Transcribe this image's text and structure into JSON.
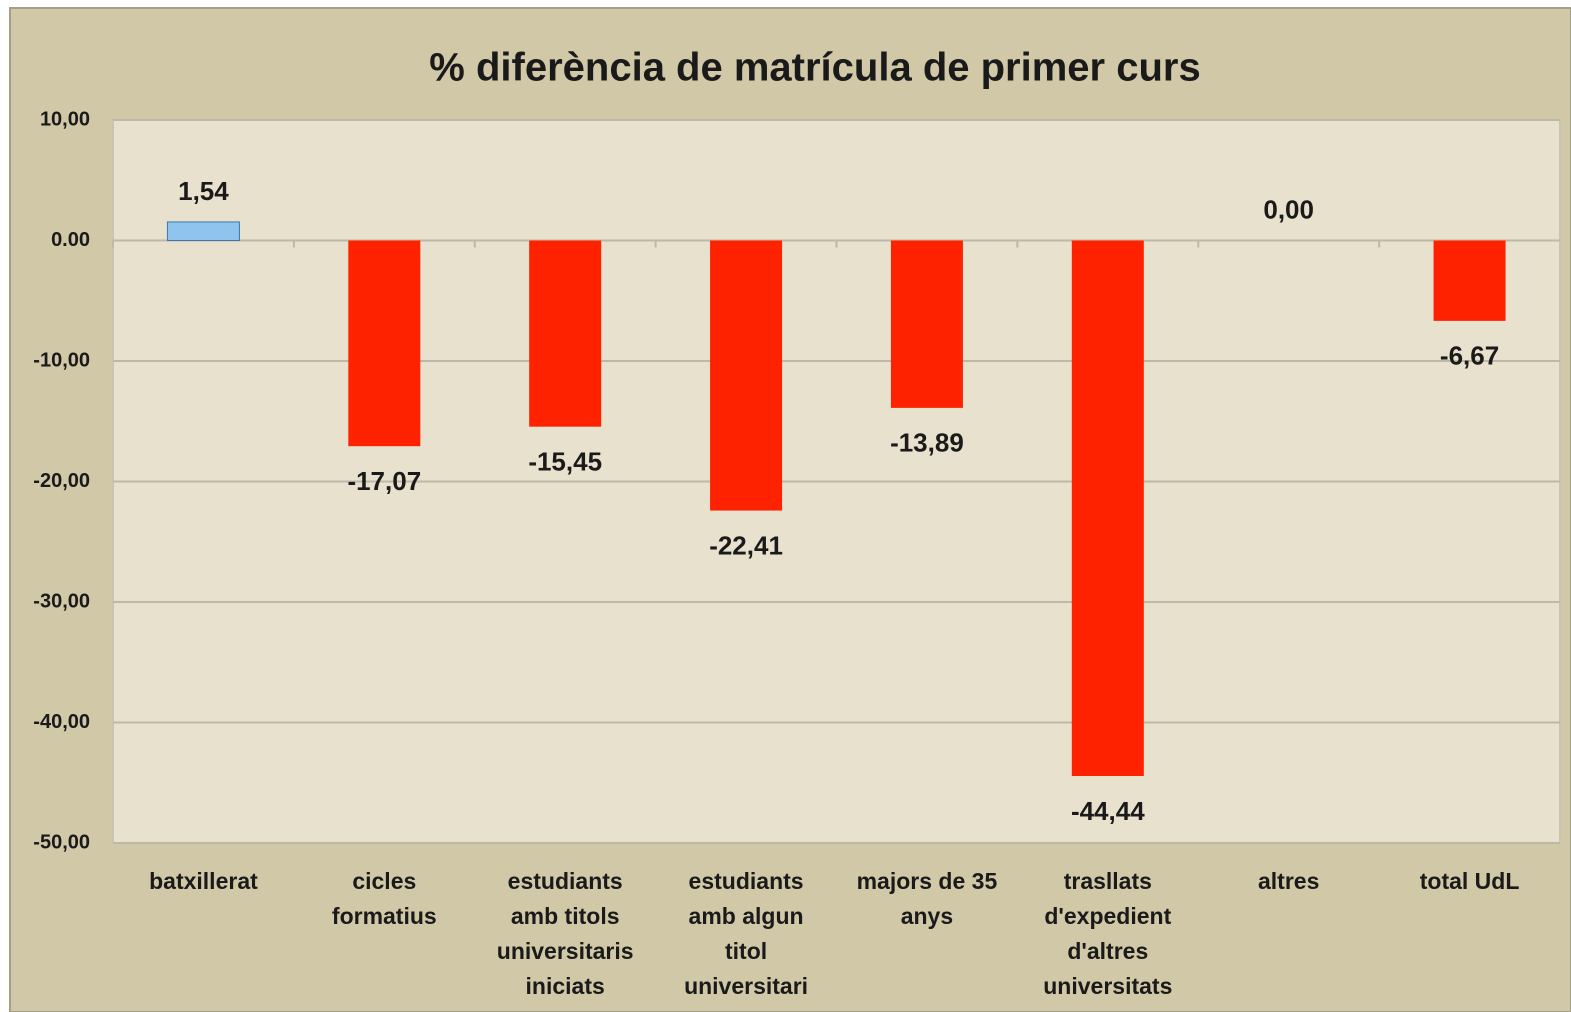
{
  "chart_data": {
    "type": "bar",
    "title": "% diferència  de matrícula de primer curs",
    "categories": [
      [
        "batxillerat"
      ],
      [
        "cicles",
        "formatius"
      ],
      [
        "estudiants",
        "amb titols",
        "universitaris",
        "iniciats"
      ],
      [
        "estudiants",
        "amb algun",
        "titol",
        "universitari"
      ],
      [
        "majors de 35",
        "anys"
      ],
      [
        "trasllats",
        "d'expedient",
        "d'altres",
        "universitats"
      ],
      [
        "altres"
      ],
      [
        "total  UdL"
      ]
    ],
    "values": [
      1.54,
      -17.07,
      -15.45,
      -22.41,
      -13.89,
      -44.44,
      0,
      -6.67
    ],
    "value_labels": [
      "1,54",
      "-17,07",
      "-15,45",
      "-22,41",
      "-13,89",
      "-44,44",
      "0,00",
      "-6,67"
    ],
    "color": "#ff2200",
    "positive_color": "#8ec4ee",
    "label_color_positive": "#ff2a1a",
    "label_color_negative": "#1f3a66",
    "ylim": [
      -50,
      10
    ],
    "yticks": [
      {
        "value": -50,
        "label": "-50,00"
      },
      {
        "value": -40,
        "label": "-40,00"
      },
      {
        "value": -30,
        "label": "-30,00"
      },
      {
        "value": -20,
        "label": "-20,00"
      },
      {
        "value": -10,
        "label": "-10,00"
      },
      {
        "value": 0,
        "label": "0.00"
      },
      {
        "value": 10,
        "label": "10,00"
      }
    ],
    "grid": true
  }
}
